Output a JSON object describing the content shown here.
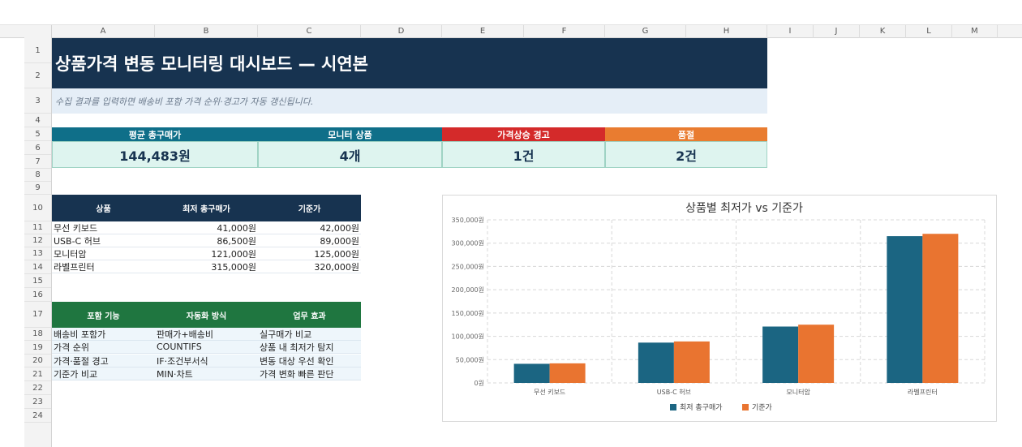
{
  "columns": [
    "A",
    "B",
    "C",
    "D",
    "E",
    "F",
    "G",
    "H",
    "I",
    "J",
    "K",
    "L",
    "M"
  ],
  "rows": [
    "1",
    "2",
    "3",
    "4",
    "5",
    "6",
    "7",
    "8",
    "9",
    "10",
    "11",
    "12",
    "13",
    "14",
    "15",
    "16",
    "17",
    "18",
    "19",
    "20",
    "21",
    "22",
    "23",
    "24"
  ],
  "title": "상품가격 변동 모니터링 대시보드 — 시연본",
  "subtitle": "수집 결과를 입력하면 배송비 포함 가격 순위·경고가 자동 갱신됩니다.",
  "kpis": [
    {
      "label": "평균 총구매가",
      "value": "144,483원",
      "color": "#0f6f89"
    },
    {
      "label": "모니터 상품",
      "value": "4개",
      "color": "#0f6f89"
    },
    {
      "label": "가격상승 경고",
      "value": "1건",
      "color": "#d42a2a"
    },
    {
      "label": "품절",
      "value": "2건",
      "color": "#e97c30"
    }
  ],
  "product_table": {
    "headers": [
      "상품",
      "최저 총구매가",
      "기준가"
    ],
    "rows": [
      [
        "무선 키보드",
        "41,000원",
        "42,000원"
      ],
      [
        "USB-C 허브",
        "86,500원",
        "89,000원"
      ],
      [
        "모니터암",
        "121,000원",
        "125,000원"
      ],
      [
        "라벨프린터",
        "315,000원",
        "320,000원"
      ]
    ]
  },
  "feature_table": {
    "headers": [
      "포함 기능",
      "자동화 방식",
      "업무 효과"
    ],
    "rows": [
      [
        "배송비 포함가",
        "판매가+배송비",
        "실구매가 비교"
      ],
      [
        "가격 순위",
        "COUNTIFS",
        "상품 내 최저가 탐지"
      ],
      [
        "가격·품절 경고",
        "IF·조건부서식",
        "변동 대상 우선 확인"
      ],
      [
        "기준가 비교",
        "MIN·차트",
        "가격 변화 빠른 판단"
      ]
    ]
  },
  "chart_data": {
    "type": "bar",
    "title": "상품별 최저가 vs 기준가",
    "categories": [
      "무선 키보드",
      "USB-C 허브",
      "모니터암",
      "라벨프린터"
    ],
    "series": [
      {
        "name": "최저 총구매가",
        "values": [
          41000,
          86500,
          121000,
          315000
        ],
        "color": "#1b6582"
      },
      {
        "name": "기준가",
        "values": [
          42000,
          89000,
          125000,
          320000
        ],
        "color": "#e97430"
      }
    ],
    "ylim": [
      0,
      350000
    ],
    "yticks": [
      "0원",
      "50,000원",
      "100,000원",
      "150,000원",
      "200,000원",
      "250,000원",
      "300,000원",
      "350,000원"
    ],
    "ytick_values": [
      0,
      50000,
      100000,
      150000,
      200000,
      250000,
      300000,
      350000
    ],
    "grid": true,
    "legend": "bottom"
  }
}
